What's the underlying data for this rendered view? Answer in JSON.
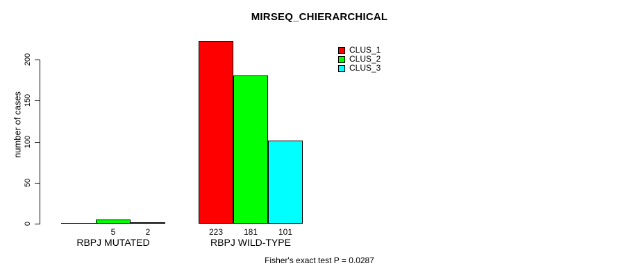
{
  "chart_data": {
    "type": "bar",
    "title": "MIRSEQ_CHIERARCHICAL",
    "ylabel": "number of cases",
    "xlabel": "",
    "categories": [
      "RBPJ MUTATED",
      "RBPJ WILD-TYPE"
    ],
    "series": [
      {
        "name": "CLUS_1",
        "color": "#FF0000",
        "values": [
          0,
          223
        ]
      },
      {
        "name": "CLUS_2",
        "color": "#00FF00",
        "values": [
          5,
          181
        ]
      },
      {
        "name": "CLUS_3",
        "color": "#00FFFF",
        "values": [
          2,
          101
        ]
      }
    ],
    "bar_value_labels": [
      [
        "",
        "5",
        "2"
      ],
      [
        "223",
        "181",
        "101"
      ]
    ],
    "yticks": [
      0,
      50,
      100,
      150,
      200
    ],
    "ylim": [
      0,
      224
    ],
    "grid": false,
    "legend_position": "top-right",
    "legend_entries": [
      "CLUS_1",
      "CLUS_2",
      "CLUS_3"
    ],
    "annotation": "Fisher's exact test P = 0.0287"
  }
}
